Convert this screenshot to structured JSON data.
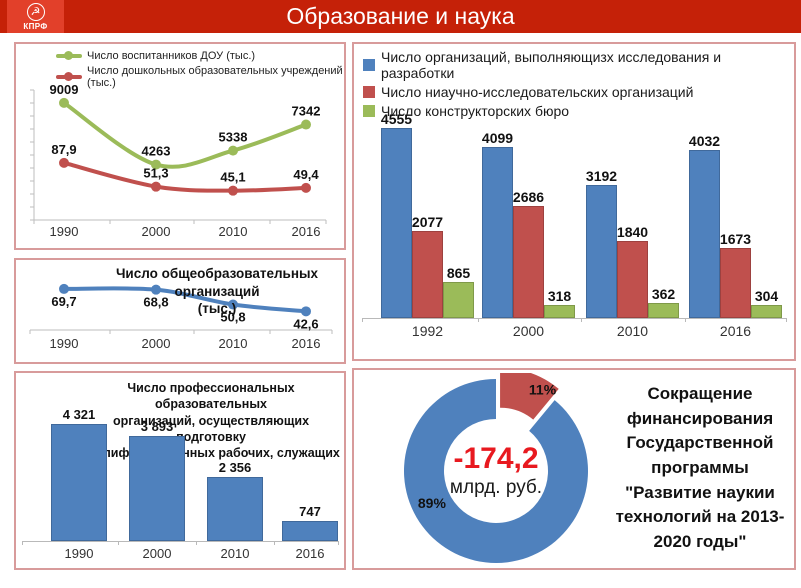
{
  "header": {
    "title": "Образование и наука",
    "logo_text": "КПРФ"
  },
  "colors": {
    "blue": "#4F81BD",
    "red": "#C0504D",
    "green": "#9BBB59",
    "header": "#C52108",
    "logo": "#E2402A",
    "panel_border": "#D89B9B",
    "value_red": "#E8191F",
    "text_dark": "#111111",
    "axis": "#BDBDBD",
    "xlabel": "#333333"
  },
  "chart_data": [
    {
      "id": "preschool",
      "type": "line",
      "categories": [
        "1990",
        "2000",
        "2010",
        "2016"
      ],
      "label_position": "above",
      "legend_position": "top",
      "grid": false,
      "series": [
        {
          "name": "Число воспитанников ДОУ (тыс.)",
          "color_key": "green",
          "values": [
            9009,
            4263,
            5338,
            7342
          ],
          "labels": [
            "9009",
            "4263",
            "5338",
            "7342"
          ],
          "axis_min": 0,
          "axis_max": 10000
        },
        {
          "name": "Число дошкольных образовательных учреждений (тыс.)",
          "color_key": "red",
          "values": [
            87.9,
            51.3,
            45.1,
            49.4
          ],
          "labels": [
            "87,9",
            "51,3",
            "45,1",
            "49,4"
          ],
          "axis_min": 0,
          "axis_max": 200
        }
      ]
    },
    {
      "id": "schools",
      "type": "line",
      "title": "Число общеобразовательных организаций (тыс.)",
      "title_lines": [
        "Число общеобразовательных организаций",
        "(тыс.)"
      ],
      "categories": [
        "1990",
        "2000",
        "2010",
        "2016"
      ],
      "label_position": "below",
      "grid": false,
      "series": [
        {
          "name": "Число общеобразовательных организаций (тыс.)",
          "color_key": "blue",
          "values": [
            69.7,
            68.8,
            50.8,
            42.6
          ],
          "labels": [
            "69,7",
            "68,8",
            "50,8",
            "42,6"
          ],
          "axis_min": 20,
          "axis_max": 95
        }
      ]
    },
    {
      "id": "vocational",
      "type": "bar",
      "title": "Число профессиональных образовательных организаций, осуществляющих подготовку квалифицированных рабочих, служащих",
      "title_lines": [
        "Число профессиональных образовательных",
        "организаций, осуществляющих подготовку",
        "квалифицированных рабочих, служащих"
      ],
      "categories": [
        "1990",
        "2000",
        "2010",
        "2016"
      ],
      "values": [
        4321,
        3893,
        2356,
        747
      ],
      "labels": [
        "4 321",
        "3 893",
        "2 356",
        "747"
      ],
      "color_key": "blue",
      "axis_min": 0,
      "axis_max": 4800,
      "grid": false
    },
    {
      "id": "research",
      "type": "bar",
      "categories": [
        "1992",
        "2000",
        "2010",
        "2016"
      ],
      "axis_min": 0,
      "axis_max": 4800,
      "grid": false,
      "legend_position": "top",
      "series": [
        {
          "name": "Число организаций, выполняющизх исследования и разработки",
          "color_key": "blue",
          "values": [
            4555,
            4099,
            3192,
            4032
          ],
          "labels": [
            "4555",
            "4099",
            "3192",
            "4032"
          ]
        },
        {
          "name": "Число ниаучно-исследовательских организаций",
          "color_key": "red",
          "values": [
            2077,
            2686,
            1840,
            1673
          ],
          "labels": [
            "2077",
            "2686",
            "1840",
            "1673"
          ]
        },
        {
          "name": "Число конструкторских бюро",
          "color_key": "green",
          "values": [
            865,
            318,
            362,
            304
          ],
          "labels": [
            "865",
            "318",
            "362",
            "304"
          ]
        }
      ]
    },
    {
      "id": "funding",
      "type": "pie",
      "slices": [
        {
          "label": "11%",
          "value": 11,
          "color_key": "red",
          "exploded": true
        },
        {
          "label": "89%",
          "value": 89,
          "color_key": "blue",
          "exploded": false
        }
      ],
      "center_value": "-174,2",
      "center_unit": "млрд. руб."
    }
  ],
  "funding_note": "Сокращение финансирования Государственной программы \"Развитие наукии технологий на 2013-2020 годы\""
}
